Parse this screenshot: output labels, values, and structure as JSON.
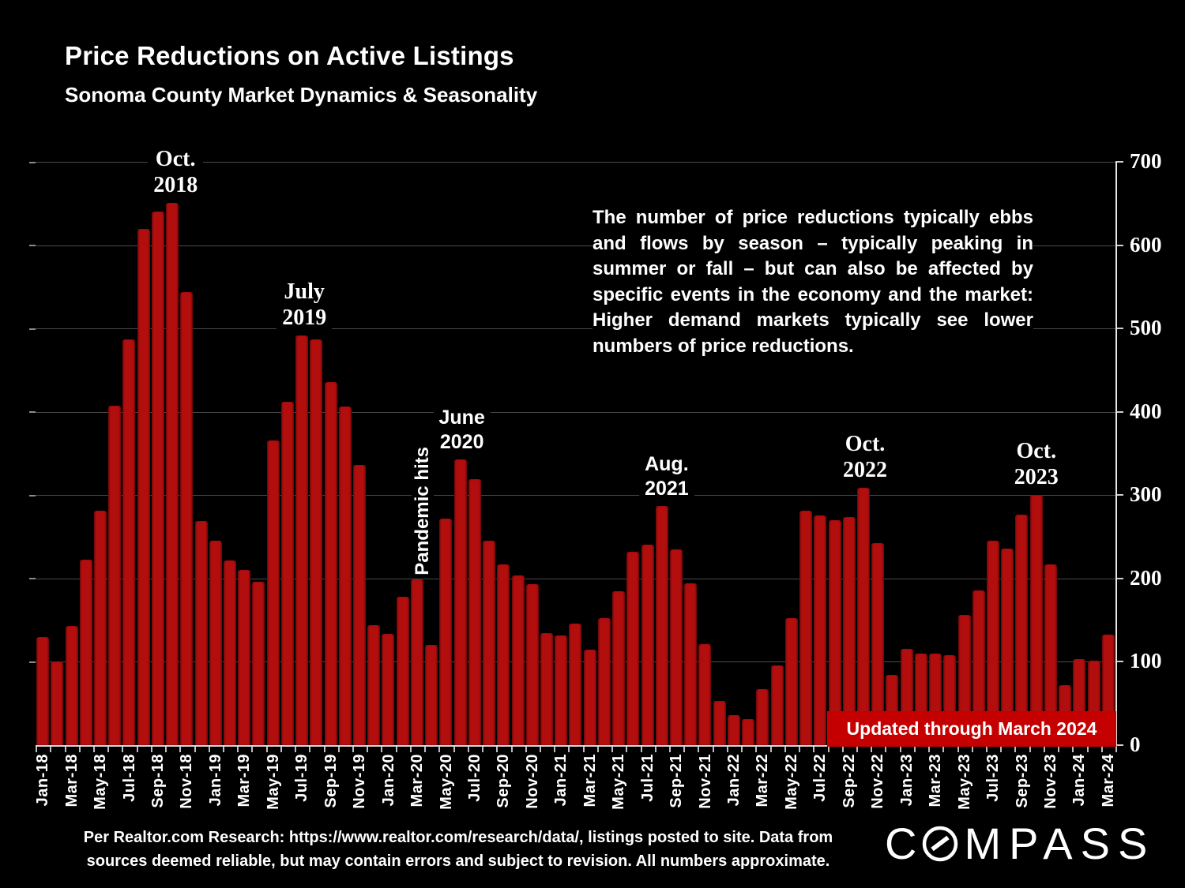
{
  "page": {
    "title": "Price Reductions on Active Listings",
    "subtitle": "Sonoma County Market Dynamics & Seasonality"
  },
  "note": {
    "lines": [
      "The number of price reductions typically ebbs",
      "and flows by season – typically peaking in",
      "summer or fall – but can also be affected by",
      "specific events in the economy and the market:",
      "Higher demand markets typically see lower",
      "numbers of price reductions."
    ]
  },
  "updated_banner": "Updated through March 2024",
  "footer": {
    "line1": "Per Realtor.com Research:  https://www.realtor.com/research/data/, listings posted to site. Data from",
    "line2": "sources deemed reliable, but may contain errors and subject to revision. All numbers approximate."
  },
  "logo": {
    "name": "COMPASS",
    "text_before": "C",
    "text_after": "MPASS"
  },
  "colors": {
    "background": "#000000",
    "bar": "#b30e0e",
    "banner": "#c40000",
    "gridline": "#4a4a4a",
    "axis": "#d9d9d9",
    "text": "#ffffff"
  },
  "chart_data": {
    "type": "bar",
    "title": "Price Reductions on Active Listings",
    "xlabel": "",
    "ylabel": "",
    "ylim": [
      0,
      700
    ],
    "ytick_interval": 100,
    "yticks": [
      0,
      100,
      200,
      300,
      400,
      500,
      600,
      700
    ],
    "ytick_labels": [
      "0",
      "100",
      "200",
      "300",
      "400",
      "500",
      "600",
      "700"
    ],
    "y_axis_side": "right",
    "grid": true,
    "x_tick_shown_every": 2,
    "x": [
      "Jan-18",
      "Feb-18",
      "Mar-18",
      "Apr-18",
      "May-18",
      "Jun-18",
      "Jul-18",
      "Aug-18",
      "Sep-18",
      "Oct-18",
      "Nov-18",
      "Dec-18",
      "Jan-19",
      "Feb-19",
      "Mar-19",
      "Apr-19",
      "May-19",
      "Jun-19",
      "Jul-19",
      "Aug-19",
      "Sep-19",
      "Oct-19",
      "Nov-19",
      "Dec-19",
      "Jan-20",
      "Feb-20",
      "Mar-20",
      "Apr-20",
      "May-20",
      "Jun-20",
      "Jul-20",
      "Aug-20",
      "Sep-20",
      "Oct-20",
      "Nov-20",
      "Dec-20",
      "Jan-21",
      "Feb-21",
      "Mar-21",
      "Apr-21",
      "May-21",
      "Jun-21",
      "Jul-21",
      "Aug-21",
      "Sep-21",
      "Oct-21",
      "Nov-21",
      "Dec-21",
      "Jan-22",
      "Feb-22",
      "Mar-22",
      "Apr-22",
      "May-22",
      "Jun-22",
      "Jul-22",
      "Aug-22",
      "Sep-22",
      "Oct-22",
      "Nov-22",
      "Dec-22",
      "Jan-23",
      "Feb-23",
      "Mar-23",
      "Apr-23",
      "May-23",
      "Jun-23",
      "Jul-23",
      "Aug-23",
      "Sep-23",
      "Oct-23",
      "Nov-23",
      "Dec-23",
      "Jan-24",
      "Feb-24",
      "Mar-24"
    ],
    "values": [
      130,
      100,
      143,
      223,
      281,
      407,
      487,
      620,
      640,
      651,
      544,
      269,
      245,
      222,
      210,
      196,
      366,
      412,
      492,
      487,
      436,
      406,
      336,
      144,
      134,
      178,
      199,
      120,
      272,
      343,
      319,
      245,
      217,
      204,
      193,
      135,
      132,
      146,
      115,
      153,
      185,
      232,
      241,
      287,
      235,
      194,
      121,
      53,
      36,
      31,
      67,
      96,
      153,
      281,
      276,
      270,
      274,
      309,
      243,
      84,
      116,
      110,
      110,
      108,
      156,
      186,
      245,
      236,
      277,
      300,
      217,
      72,
      103,
      101,
      133
    ],
    "annotations": [
      {
        "month": "Oct-18",
        "lines": [
          "Oct.",
          "2018"
        ],
        "font": "serif",
        "dx": 4
      },
      {
        "month": "Jul-19",
        "lines": [
          "July",
          "2019"
        ],
        "font": "serif",
        "dx": 3
      },
      {
        "month": "Jun-20",
        "lines": [
          "June",
          "2020"
        ],
        "font": "sans",
        "dx": 2
      },
      {
        "month": "Mar-20",
        "lines": [
          "Pandemic hits"
        ],
        "font": "sans",
        "rotate": true,
        "dx": 9
      },
      {
        "month": "Aug-21",
        "lines": [
          "Aug.",
          "2021"
        ],
        "font": "sans",
        "dx": 6
      },
      {
        "month": "Oct-22",
        "lines": [
          "Oct.",
          "2022"
        ],
        "font": "serif",
        "dx": 2
      },
      {
        "month": "Oct-23",
        "lines": [
          "Oct.",
          "2023"
        ],
        "font": "serif",
        "dx": 0
      }
    ]
  }
}
